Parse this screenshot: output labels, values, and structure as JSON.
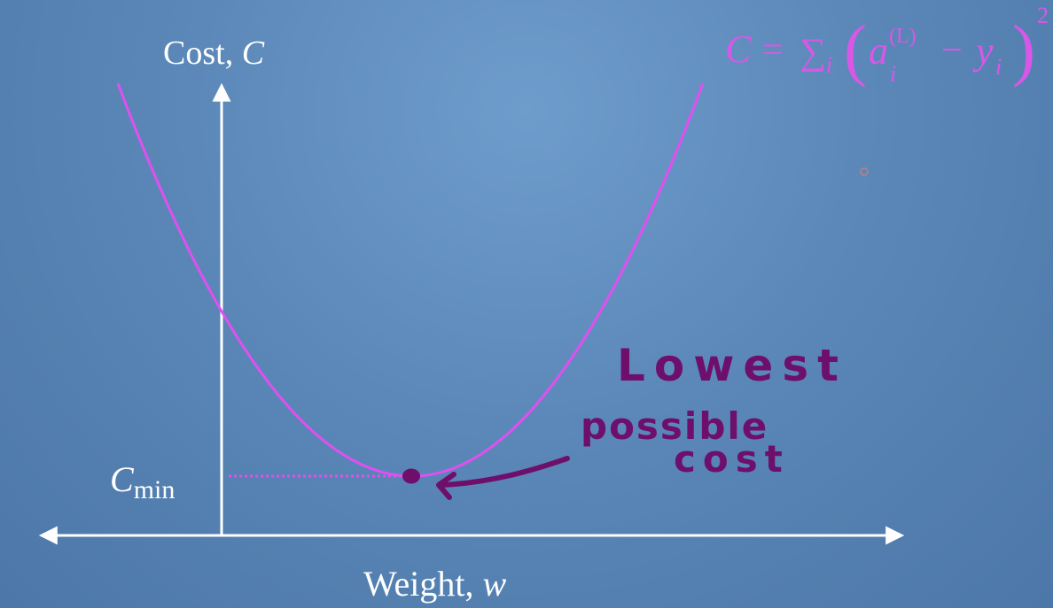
{
  "axes": {
    "y_label_text": "Cost, ",
    "y_label_var": "C",
    "x_label_text": "Weight, ",
    "x_label_var": "w",
    "cmin_base": "C",
    "cmin_sub": "min"
  },
  "formula": {
    "lhs": "C",
    "equals": "=",
    "sum": "∑",
    "sum_index": "i",
    "open_paren": "(",
    "a_var": "a",
    "a_sub": "i",
    "a_sup": "(L)",
    "minus": "−",
    "y_var": "y",
    "y_sub": "i",
    "close_paren": ")",
    "exponent": "2"
  },
  "annotation": {
    "line1": "Lowest",
    "line2": "possible",
    "line3": "cost"
  },
  "colors": {
    "curve": "#e14ff0",
    "ink": "#6e0f6b",
    "axis": "#ffffff",
    "formula": "#d957e6"
  },
  "icons": {
    "minimum_point": "filled-dot",
    "pointer": "hand-drawn-arrow"
  }
}
